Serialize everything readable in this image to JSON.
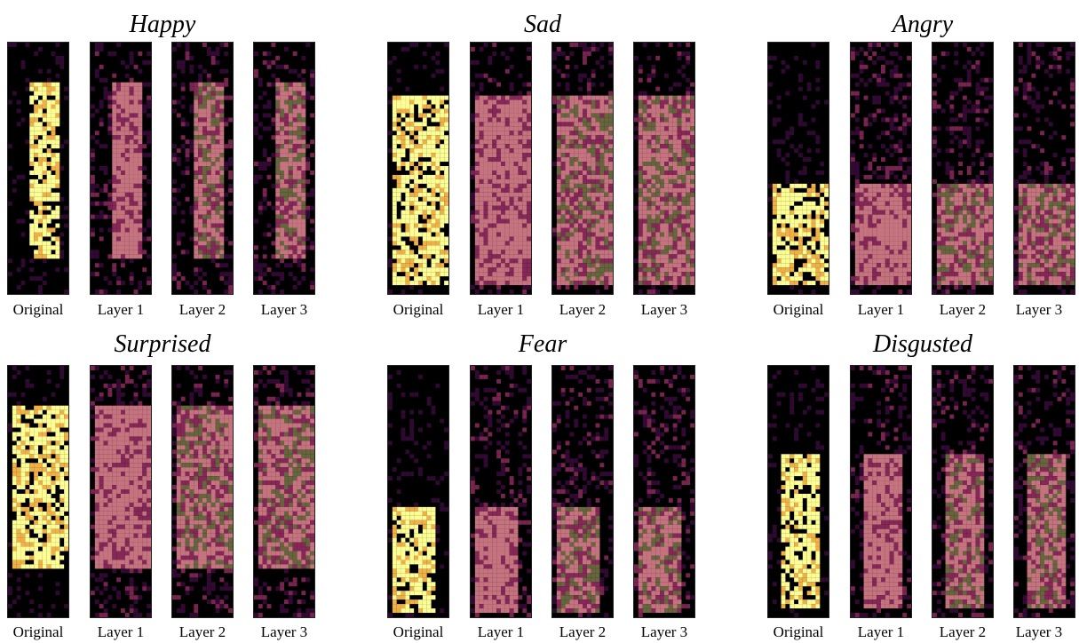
{
  "figure": {
    "groups": [
      {
        "title": "Happy",
        "labels": [
          "Original",
          "Layer 1",
          "Layer 2",
          "Layer 3"
        ]
      },
      {
        "title": "Sad",
        "labels": [
          "Original",
          "Layer 1",
          "Layer 2",
          "Layer 3"
        ]
      },
      {
        "title": "Angry",
        "labels": [
          "Original",
          "Layer 1",
          "Layer 2",
          "Layer 3"
        ]
      },
      {
        "title": "Surprised",
        "labels": [
          "Original",
          "Layer 1",
          "Layer 2",
          "Layer 3"
        ]
      },
      {
        "title": "Fear",
        "labels": [
          "Original",
          "Layer 1",
          "Layer 2",
          "Layer 3"
        ]
      },
      {
        "title": "Disgusted",
        "labels": [
          "Original",
          "Layer 1",
          "Layer 2",
          "Layer 3"
        ]
      }
    ],
    "colors": {
      "background": "#000000",
      "original_high": "#fdfd96",
      "original_mid": "#f0b048",
      "dark_purple": "#3a0b3c",
      "magenta": "#8c2a5c",
      "pink": "#d07a86",
      "olive": "#6b6a40"
    }
  }
}
